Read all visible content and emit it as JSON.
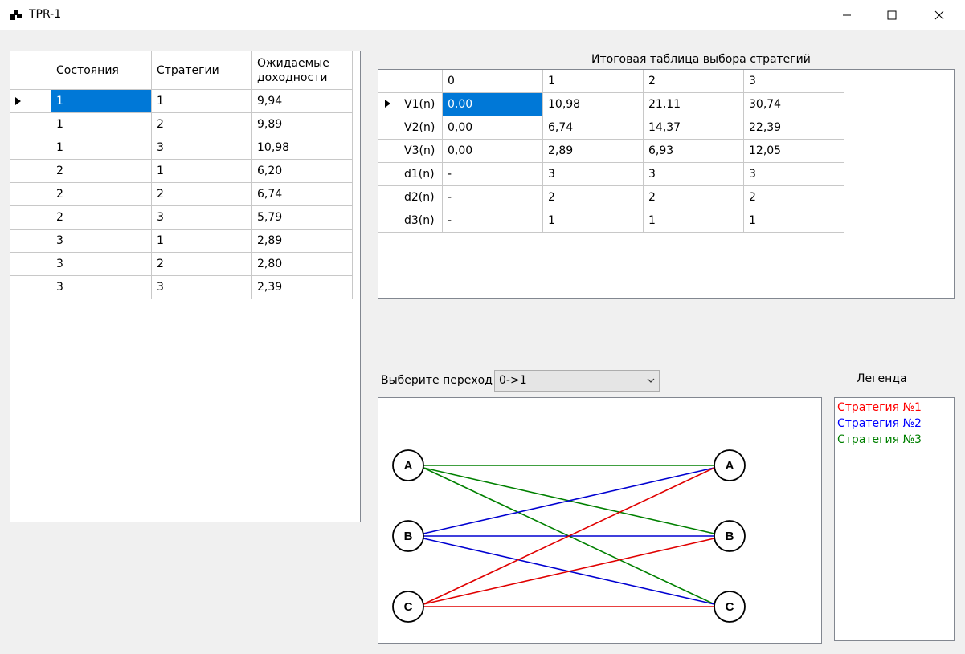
{
  "window": {
    "title": "TPR-1"
  },
  "left_table": {
    "columns": [
      "Состояния",
      "Стратегии",
      "Ожидаемые доходности"
    ],
    "rows": [
      [
        "1",
        "1",
        "9,94"
      ],
      [
        "1",
        "2",
        "9,89"
      ],
      [
        "1",
        "3",
        "10,98"
      ],
      [
        "2",
        "1",
        "6,20"
      ],
      [
        "2",
        "2",
        "6,74"
      ],
      [
        "2",
        "3",
        "5,79"
      ],
      [
        "3",
        "1",
        "2,89"
      ],
      [
        "3",
        "2",
        "2,80"
      ],
      [
        "3",
        "3",
        "2,39"
      ]
    ]
  },
  "result_table": {
    "title": "Итоговая таблица выбора стратегий",
    "columns": [
      "0",
      "1",
      "2",
      "3"
    ],
    "rows": [
      {
        "label": "V1(n)",
        "cells": [
          "0,00",
          "10,98",
          "21,11",
          "30,74"
        ]
      },
      {
        "label": "V2(n)",
        "cells": [
          "0,00",
          "6,74",
          "14,37",
          "22,39"
        ]
      },
      {
        "label": "V3(n)",
        "cells": [
          "0,00",
          "2,89",
          "6,93",
          "12,05"
        ]
      },
      {
        "label": "d1(n)",
        "cells": [
          "-",
          "3",
          "3",
          "3"
        ]
      },
      {
        "label": "d2(n)",
        "cells": [
          "-",
          "2",
          "2",
          "2"
        ]
      },
      {
        "label": "d3(n)",
        "cells": [
          "-",
          "1",
          "1",
          "1"
        ]
      }
    ]
  },
  "transition": {
    "label": "Выберите переход",
    "value": "0->1"
  },
  "graph": {
    "left_nodes": [
      "A",
      "B",
      "C"
    ],
    "right_nodes": [
      "A",
      "B",
      "C"
    ],
    "edges": [
      {
        "from": "A",
        "to": "A",
        "strategy": 3
      },
      {
        "from": "A",
        "to": "B",
        "strategy": 3
      },
      {
        "from": "A",
        "to": "C",
        "strategy": 3
      },
      {
        "from": "B",
        "to": "A",
        "strategy": 2
      },
      {
        "from": "B",
        "to": "B",
        "strategy": 2
      },
      {
        "from": "B",
        "to": "C",
        "strategy": 2
      },
      {
        "from": "C",
        "to": "A",
        "strategy": 1
      },
      {
        "from": "C",
        "to": "B",
        "strategy": 1
      },
      {
        "from": "C",
        "to": "C",
        "strategy": 1
      }
    ]
  },
  "legend": {
    "title": "Легенда",
    "items": [
      {
        "label": "Стратегия №1",
        "color": "#ff0000"
      },
      {
        "label": "Стратегия №2",
        "color": "#0000ff"
      },
      {
        "label": "Стратегия №3",
        "color": "#008000"
      }
    ]
  },
  "colors": {
    "selection": "#0078d7",
    "edge_strategy1": "#e00000",
    "edge_strategy2": "#0000d0",
    "edge_strategy3": "#008000"
  }
}
